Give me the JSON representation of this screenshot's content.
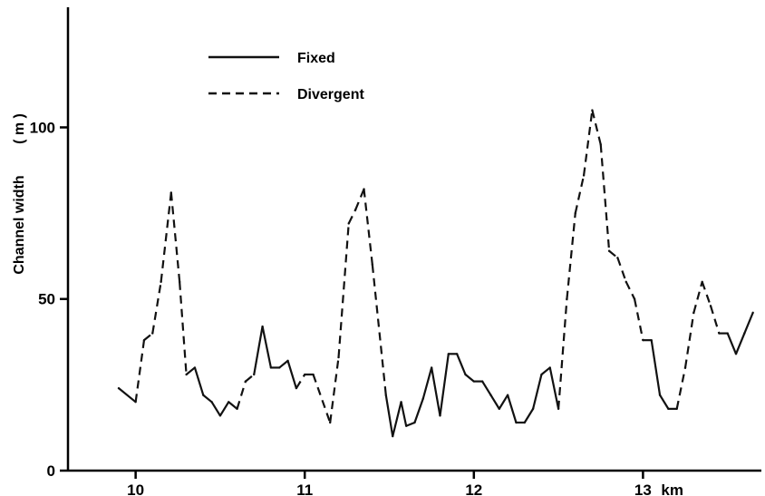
{
  "chart_data": {
    "type": "line",
    "title": "",
    "xlabel": "",
    "ylabel": "Channel width",
    "ylabel_unit": "( m )",
    "x_unit_label": "km",
    "xlim": [
      9.6,
      13.7
    ],
    "ylim": [
      0,
      135
    ],
    "xticks": [
      10,
      11,
      12,
      13
    ],
    "xtick_labels": [
      "10",
      "11",
      "12",
      "13"
    ],
    "yticks": [
      0,
      50,
      100
    ],
    "ytick_labels": [
      "0",
      "50",
      "100"
    ],
    "grid": false,
    "legend_position": "top-left",
    "legend": [
      {
        "label": "Fixed",
        "style": "solid"
      },
      {
        "label": "Divergent",
        "style": "dashed"
      }
    ],
    "line_color": "#111111",
    "points": [
      [
        9.9,
        24,
        "solid"
      ],
      [
        10.0,
        20,
        "dashed"
      ],
      [
        10.05,
        38,
        "dashed"
      ],
      [
        10.1,
        40,
        "dashed"
      ],
      [
        10.15,
        55,
        "dashed"
      ],
      [
        10.21,
        81,
        "dashed"
      ],
      [
        10.26,
        55,
        "dashed"
      ],
      [
        10.3,
        28,
        "solid"
      ],
      [
        10.35,
        30,
        "solid"
      ],
      [
        10.4,
        22,
        "solid"
      ],
      [
        10.45,
        20,
        "solid"
      ],
      [
        10.5,
        16,
        "solid"
      ],
      [
        10.55,
        20,
        "solid"
      ],
      [
        10.6,
        18,
        "dashed"
      ],
      [
        10.65,
        26,
        "dashed"
      ],
      [
        10.7,
        28,
        "solid"
      ],
      [
        10.75,
        42,
        "solid"
      ],
      [
        10.8,
        30,
        "solid"
      ],
      [
        10.85,
        30,
        "solid"
      ],
      [
        10.9,
        32,
        "solid"
      ],
      [
        10.95,
        24,
        "dashed"
      ],
      [
        11.0,
        28,
        "dashed"
      ],
      [
        11.05,
        28,
        "dashed"
      ],
      [
        11.15,
        14,
        "dashed"
      ],
      [
        11.2,
        33,
        "dashed"
      ],
      [
        11.26,
        72,
        "dashed"
      ],
      [
        11.3,
        76,
        "dashed"
      ],
      [
        11.35,
        82,
        "dashed"
      ],
      [
        11.4,
        60,
        "dashed"
      ],
      [
        11.48,
        22,
        "solid"
      ],
      [
        11.52,
        10,
        "solid"
      ],
      [
        11.57,
        20,
        "solid"
      ],
      [
        11.6,
        13,
        "solid"
      ],
      [
        11.65,
        14,
        "solid"
      ],
      [
        11.7,
        21,
        "solid"
      ],
      [
        11.75,
        30,
        "solid"
      ],
      [
        11.8,
        16,
        "solid"
      ],
      [
        11.85,
        34,
        "solid"
      ],
      [
        11.9,
        34,
        "solid"
      ],
      [
        11.95,
        28,
        "solid"
      ],
      [
        12.0,
        26,
        "solid"
      ],
      [
        12.05,
        26,
        "solid"
      ],
      [
        12.1,
        22,
        "solid"
      ],
      [
        12.15,
        18,
        "solid"
      ],
      [
        12.2,
        22,
        "solid"
      ],
      [
        12.25,
        14,
        "solid"
      ],
      [
        12.3,
        14,
        "solid"
      ],
      [
        12.35,
        18,
        "solid"
      ],
      [
        12.4,
        28,
        "solid"
      ],
      [
        12.45,
        30,
        "solid"
      ],
      [
        12.5,
        18,
        "dashed"
      ],
      [
        12.55,
        50,
        "dashed"
      ],
      [
        12.6,
        75,
        "dashed"
      ],
      [
        12.65,
        86,
        "dashed"
      ],
      [
        12.7,
        105,
        "dashed"
      ],
      [
        12.75,
        95,
        "dashed"
      ],
      [
        12.8,
        64,
        "dashed"
      ],
      [
        12.85,
        62,
        "dashed"
      ],
      [
        12.9,
        55,
        "dashed"
      ],
      [
        12.95,
        50,
        "dashed"
      ],
      [
        13.0,
        38,
        "solid"
      ],
      [
        13.05,
        38,
        "solid"
      ],
      [
        13.1,
        22,
        "solid"
      ],
      [
        13.15,
        18,
        "solid"
      ],
      [
        13.2,
        18,
        "dashed"
      ],
      [
        13.25,
        30,
        "dashed"
      ],
      [
        13.3,
        46,
        "dashed"
      ],
      [
        13.35,
        55,
        "dashed"
      ],
      [
        13.4,
        48,
        "dashed"
      ],
      [
        13.45,
        40,
        "solid"
      ],
      [
        13.5,
        40,
        "solid"
      ],
      [
        13.55,
        34,
        "solid"
      ],
      [
        13.6,
        40,
        "solid"
      ],
      [
        13.65,
        46,
        null
      ]
    ]
  }
}
